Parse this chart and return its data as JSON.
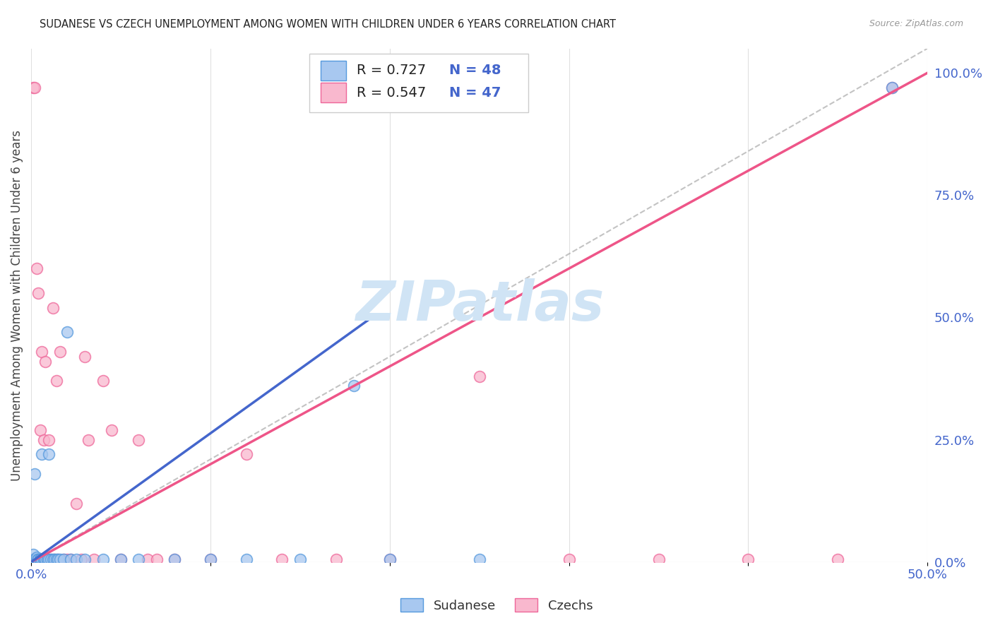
{
  "title": "SUDANESE VS CZECH UNEMPLOYMENT AMONG WOMEN WITH CHILDREN UNDER 6 YEARS CORRELATION CHART",
  "source": "Source: ZipAtlas.com",
  "ylabel": "Unemployment Among Women with Children Under 6 years",
  "xlim": [
    0.0,
    0.5
  ],
  "ylim": [
    0.0,
    1.05
  ],
  "sudanese_R": 0.727,
  "sudanese_N": 48,
  "czech_R": 0.547,
  "czech_N": 47,
  "blue_scatter_color": "#A8C8F0",
  "blue_edge_color": "#5599DD",
  "pink_scatter_color": "#F9B8CE",
  "pink_edge_color": "#EE6699",
  "blue_line_color": "#4466CC",
  "pink_line_color": "#EE5588",
  "ref_line_color": "#AAAAAA",
  "watermark_color": "#D0E4F5",
  "text_color_blue": "#4466CC",
  "grid_color": "#E0E0E0",
  "legend_label1": "Sudanese",
  "legend_label2": "Czechs",
  "sudanese_x": [
    0.001,
    0.001,
    0.002,
    0.002,
    0.002,
    0.003,
    0.003,
    0.003,
    0.003,
    0.004,
    0.004,
    0.004,
    0.005,
    0.005,
    0.005,
    0.005,
    0.006,
    0.006,
    0.007,
    0.007,
    0.008,
    0.008,
    0.009,
    0.009,
    0.01,
    0.01,
    0.011,
    0.012,
    0.013,
    0.014,
    0.015,
    0.016,
    0.018,
    0.02,
    0.022,
    0.025,
    0.03,
    0.04,
    0.05,
    0.06,
    0.08,
    0.1,
    0.12,
    0.15,
    0.18,
    0.2,
    0.25,
    0.48
  ],
  "sudanese_y": [
    0.005,
    0.015,
    0.005,
    0.005,
    0.18,
    0.005,
    0.005,
    0.005,
    0.01,
    0.005,
    0.005,
    0.005,
    0.005,
    0.005,
    0.005,
    0.005,
    0.005,
    0.22,
    0.005,
    0.005,
    0.005,
    0.005,
    0.005,
    0.005,
    0.005,
    0.22,
    0.005,
    0.005,
    0.005,
    0.005,
    0.005,
    0.005,
    0.005,
    0.47,
    0.005,
    0.005,
    0.005,
    0.005,
    0.005,
    0.005,
    0.005,
    0.005,
    0.005,
    0.005,
    0.36,
    0.005,
    0.005,
    0.97
  ],
  "czech_x": [
    0.001,
    0.001,
    0.002,
    0.003,
    0.003,
    0.004,
    0.004,
    0.005,
    0.005,
    0.006,
    0.006,
    0.007,
    0.008,
    0.009,
    0.01,
    0.011,
    0.012,
    0.013,
    0.014,
    0.015,
    0.016,
    0.018,
    0.02,
    0.022,
    0.025,
    0.028,
    0.03,
    0.032,
    0.035,
    0.04,
    0.045,
    0.05,
    0.06,
    0.065,
    0.07,
    0.08,
    0.1,
    0.12,
    0.14,
    0.17,
    0.2,
    0.25,
    0.3,
    0.35,
    0.4,
    0.45,
    0.48
  ],
  "czech_y": [
    0.97,
    0.005,
    0.97,
    0.005,
    0.6,
    0.005,
    0.55,
    0.005,
    0.27,
    0.005,
    0.43,
    0.25,
    0.41,
    0.005,
    0.25,
    0.005,
    0.52,
    0.005,
    0.37,
    0.005,
    0.43,
    0.005,
    0.005,
    0.005,
    0.12,
    0.005,
    0.42,
    0.25,
    0.005,
    0.37,
    0.27,
    0.005,
    0.25,
    0.005,
    0.005,
    0.005,
    0.005,
    0.22,
    0.005,
    0.005,
    0.005,
    0.38,
    0.005,
    0.005,
    0.005,
    0.005,
    0.97
  ],
  "blue_line_x": [
    0.0,
    0.19
  ],
  "blue_line_y": [
    0.0,
    0.5
  ],
  "pink_line_x": [
    0.0,
    0.5
  ],
  "pink_line_y": [
    0.0,
    1.0
  ],
  "ref_line_x": [
    0.0,
    0.5
  ],
  "ref_line_y": [
    0.0,
    1.0
  ]
}
